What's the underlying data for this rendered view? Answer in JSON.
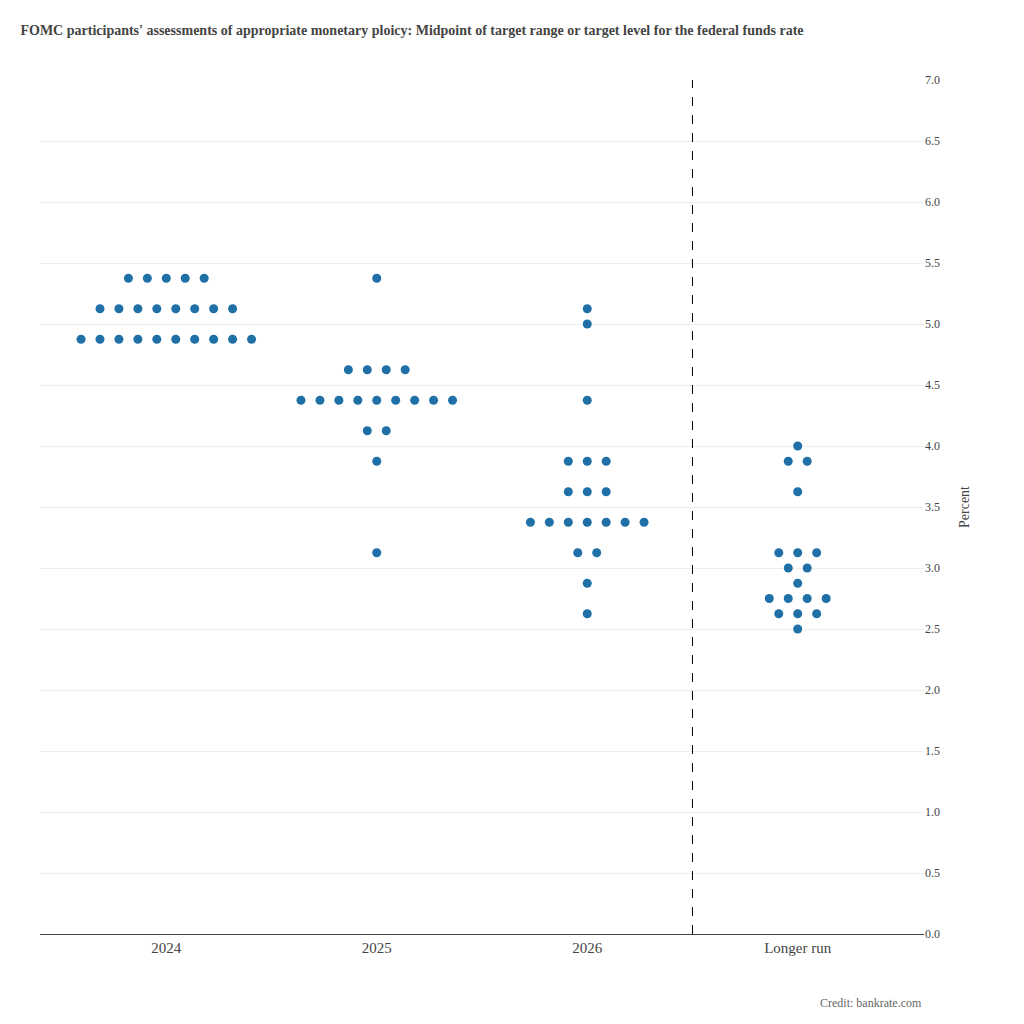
{
  "chart_data": {
    "type": "dot",
    "title": "FOMC participants' assessments of appropriate monetary ploicy: Midpoint of target range or target level for the federal funds rate",
    "ylabel": "Percent",
    "annotations": [
      "Credit: bankrate.com"
    ],
    "categories": [
      "2024",
      "2025",
      "2026",
      "Longer run"
    ],
    "color": "#2070a8",
    "marker": "circle",
    "grid": true,
    "ylim": [
      0.0,
      7.0
    ],
    "yticks": [
      {
        "value": 0.0,
        "label": "0.0"
      },
      0.5,
      {
        "value": 1.0,
        "label": "1.0"
      },
      1.5,
      {
        "value": 2.0,
        "label": "2.0"
      },
      2.5,
      {
        "value": 3.0,
        "label": "3.0"
      },
      3.5,
      {
        "value": 4.0,
        "label": "4.0"
      },
      4.5,
      {
        "value": 5.0,
        "label": "5.0"
      },
      5.5,
      {
        "value": 6.0,
        "label": "6.0"
      },
      6.5,
      {
        "value": 7.0,
        "label": "7.0"
      }
    ],
    "dots": [
      {
        "category": "2024",
        "value": 5.375,
        "count": 5
      },
      {
        "category": "2024",
        "value": 5.125,
        "count": 8
      },
      {
        "category": "2024",
        "value": 4.875,
        "count": 10
      },
      {
        "category": "2025",
        "value": 5.375,
        "count": 1
      },
      {
        "category": "2025",
        "value": 4.625,
        "count": 4
      },
      {
        "category": "2025",
        "value": 4.375,
        "count": 9
      },
      {
        "category": "2025",
        "value": 4.125,
        "count": 2
      },
      {
        "category": "2025",
        "value": 3.875,
        "count": 1
      },
      {
        "category": "2025",
        "value": 3.125,
        "count": 1
      },
      {
        "category": "2026",
        "value": 5.125,
        "count": 1
      },
      {
        "category": "2026",
        "value": 5.0,
        "count": 1
      },
      {
        "category": "2026",
        "value": 4.375,
        "count": 1
      },
      {
        "category": "2026",
        "value": 3.875,
        "count": 3
      },
      {
        "category": "2026",
        "value": 3.625,
        "count": 3
      },
      {
        "category": "2026",
        "value": 3.375,
        "count": 7
      },
      {
        "category": "2026",
        "value": 3.125,
        "count": 2
      },
      {
        "category": "2026",
        "value": 2.875,
        "count": 1
      },
      {
        "category": "2026",
        "value": 2.625,
        "count": 1
      },
      {
        "category": "Longer run",
        "value": 4.0,
        "count": 1
      },
      {
        "category": "Longer run",
        "value": 3.875,
        "count": 2
      },
      {
        "category": "Longer run",
        "value": 3.625,
        "count": 1
      },
      {
        "category": "Longer run",
        "value": 3.125,
        "count": 3
      },
      {
        "category": "Longer run",
        "value": 3.0,
        "count": 2
      },
      {
        "category": "Longer run",
        "value": 2.875,
        "count": 1
      },
      {
        "category": "Longer run",
        "value": 2.75,
        "count": 4
      },
      {
        "category": "Longer run",
        "value": 2.625,
        "count": 3
      },
      {
        "category": "Longer run",
        "value": 2.5,
        "count": 1
      }
    ]
  }
}
